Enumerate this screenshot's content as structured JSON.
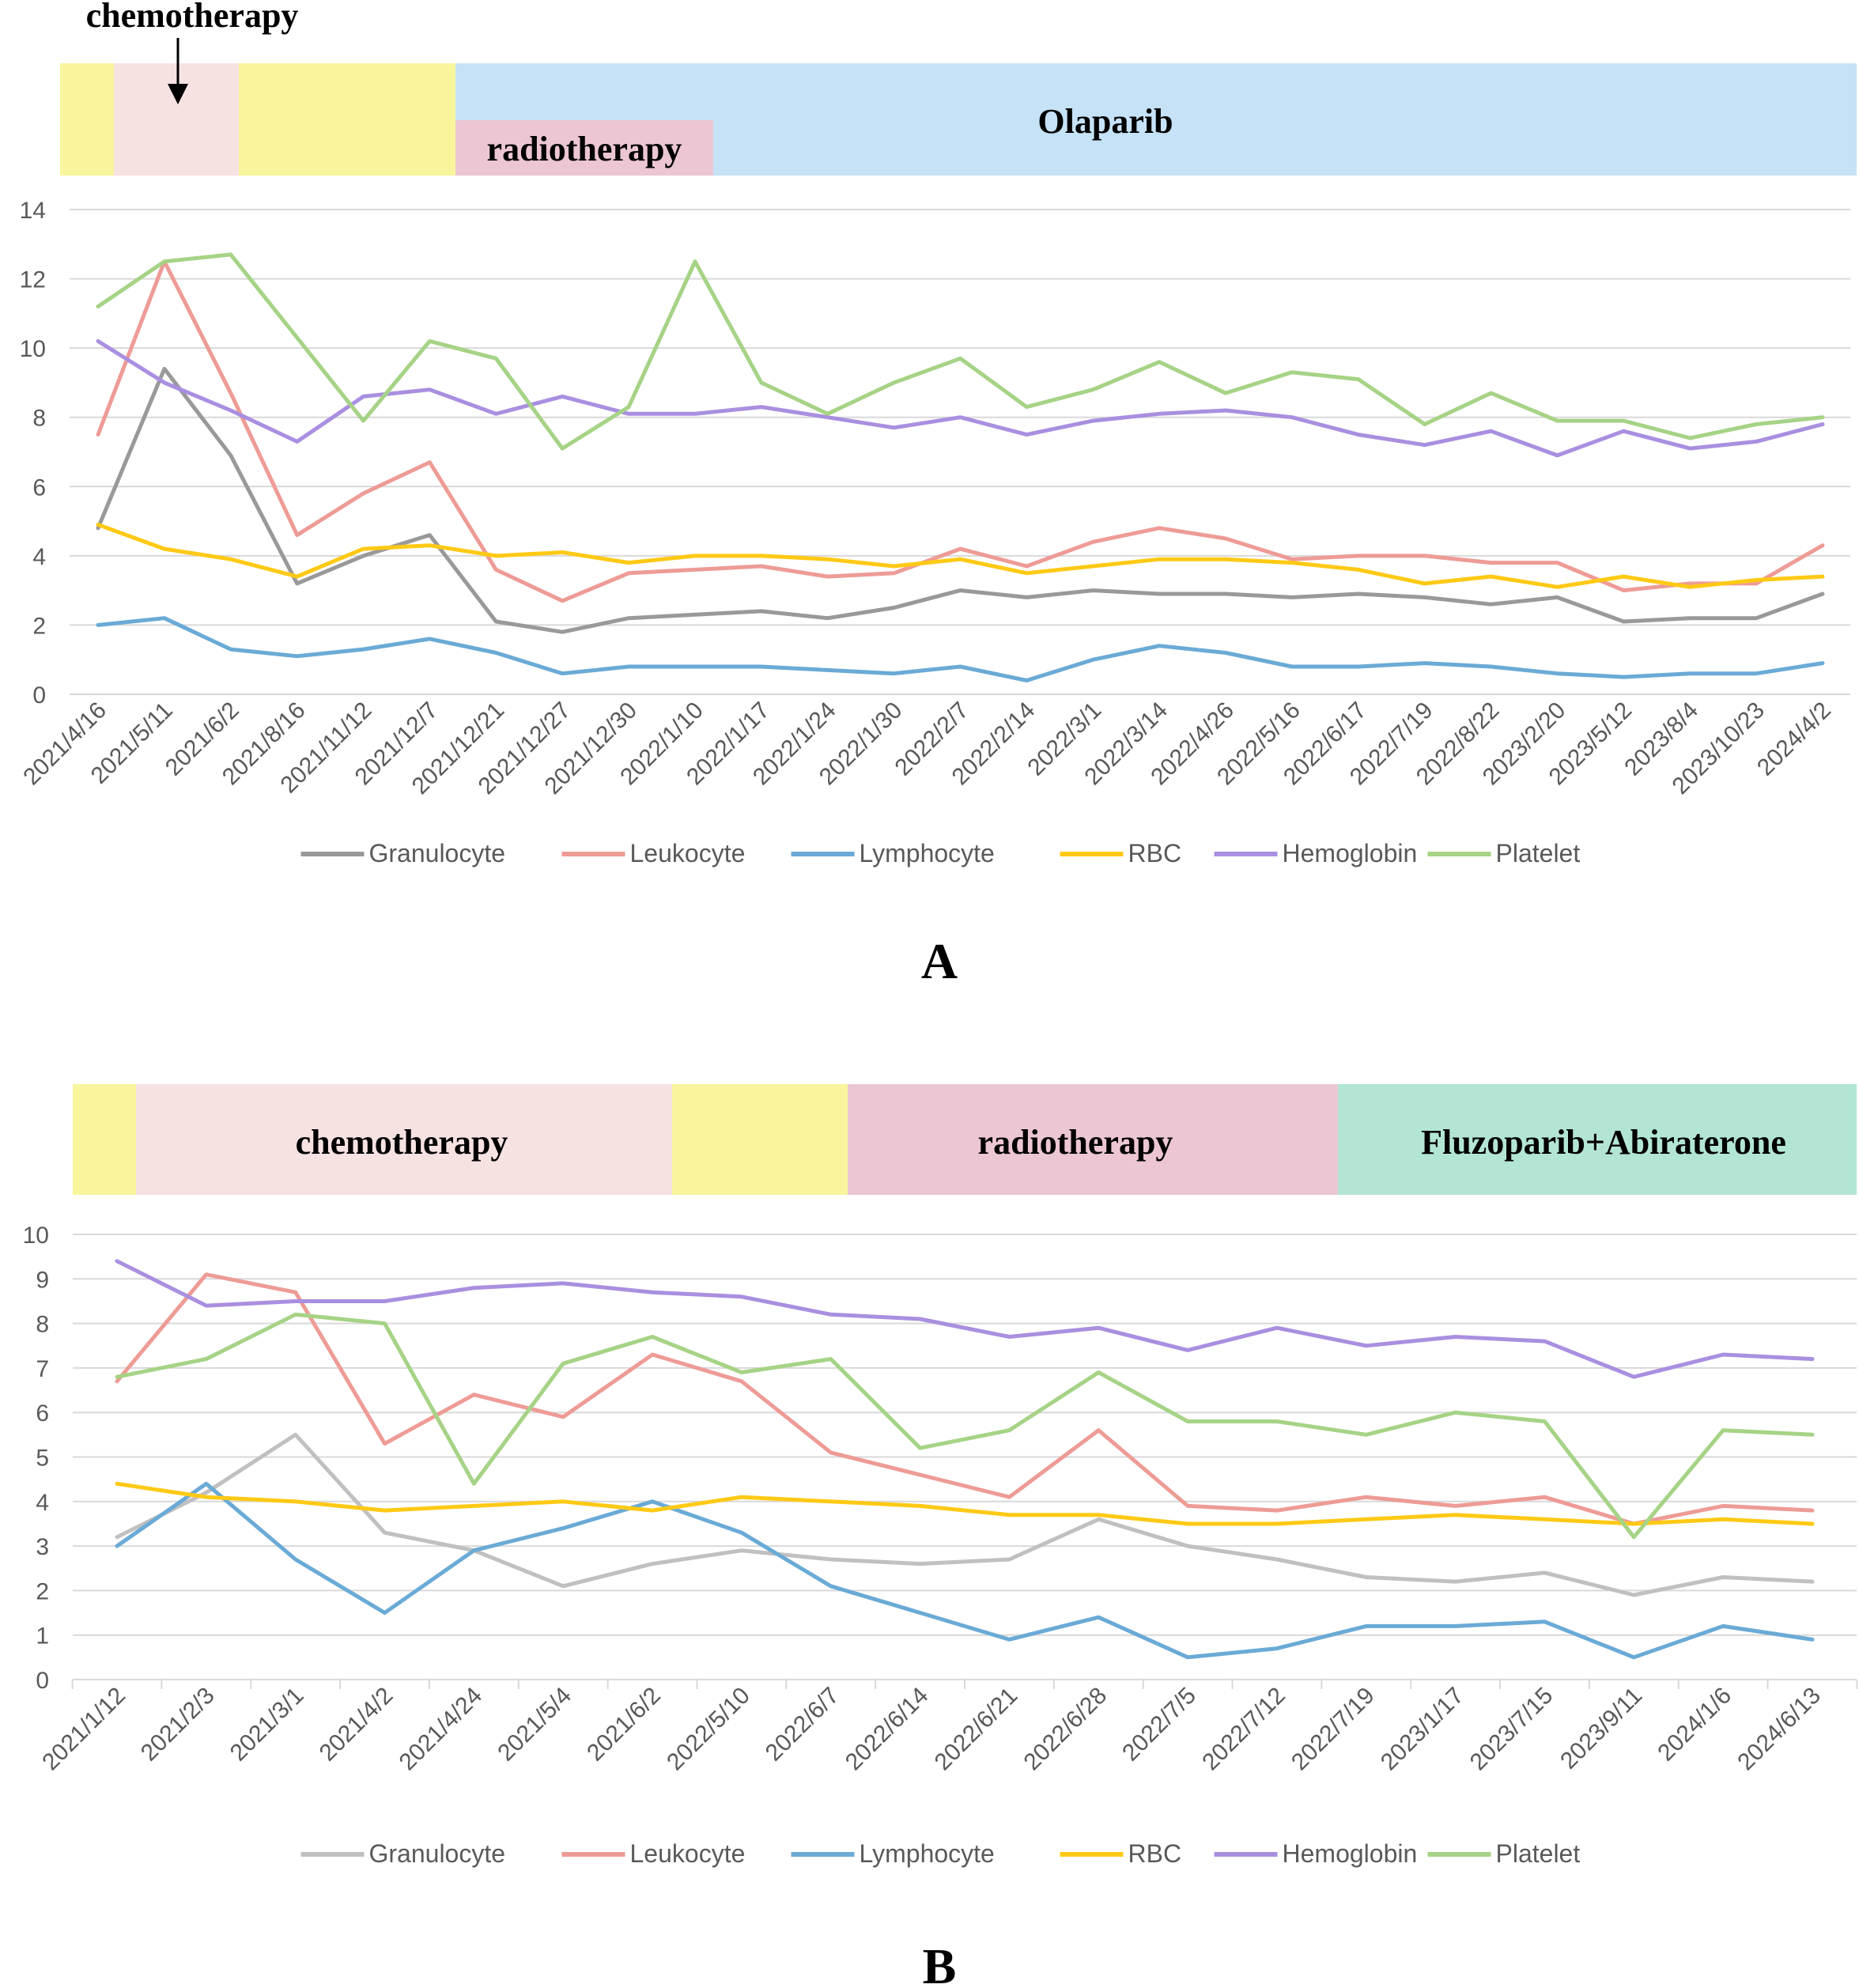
{
  "series_names": [
    "Granulocyte",
    "Leukocyte",
    "Lymphocyte",
    "RBC",
    "Hemoglobin",
    "Platelet"
  ],
  "chart_data": [
    {
      "type": "line",
      "panel_label": "A",
      "title": "",
      "xlabel": "",
      "ylabel": "",
      "ylim": [
        0,
        14
      ],
      "yticks": [
        0,
        2,
        4,
        6,
        8,
        10,
        12,
        14
      ],
      "grid": true,
      "legend": "bottom",
      "categories": [
        "2021/4/16",
        "2021/5/11",
        "2021/6/2",
        "2021/8/16",
        "2021/11/12",
        "2021/12/7",
        "2021/12/21",
        "2021/12/27",
        "2021/12/30",
        "2022/1/10",
        "2022/1/17",
        "2022/1/24",
        "2022/1/30",
        "2022/2/7",
        "2022/2/14",
        "2022/3/1",
        "2022/3/14",
        "2022/4/26",
        "2022/5/16",
        "2022/6/17",
        "2022/7/19",
        "2022/8/22",
        "2023/2/20",
        "2023/5/12",
        "2023/8/4",
        "2023/10/23",
        "2024/4/2"
      ],
      "series": [
        {
          "name": "Granulocyte",
          "color": "#999999",
          "values": [
            4.8,
            9.4,
            6.9,
            3.2,
            4.0,
            4.6,
            2.1,
            1.8,
            2.2,
            2.3,
            2.4,
            2.2,
            2.5,
            3.0,
            2.8,
            3.0,
            2.9,
            2.9,
            2.8,
            2.9,
            2.8,
            2.6,
            2.8,
            2.1,
            2.2,
            2.2,
            2.9
          ]
        },
        {
          "name": "Leukocyte",
          "color": "#ee9b96",
          "values": [
            7.5,
            12.5,
            8.7,
            4.6,
            5.8,
            6.7,
            3.6,
            2.7,
            3.5,
            3.6,
            3.7,
            3.4,
            3.5,
            4.2,
            3.7,
            4.4,
            4.8,
            4.5,
            3.9,
            4.0,
            4.0,
            3.8,
            3.8,
            3.0,
            3.2,
            3.2,
            4.3
          ]
        },
        {
          "name": "Lymphocyte",
          "color": "#6aaad6",
          "values": [
            2.0,
            2.2,
            1.3,
            1.1,
            1.3,
            1.6,
            1.2,
            0.6,
            0.8,
            0.8,
            0.8,
            0.7,
            0.6,
            0.8,
            0.4,
            1.0,
            1.4,
            1.2,
            0.8,
            0.8,
            0.9,
            0.8,
            0.6,
            0.5,
            0.6,
            0.6,
            0.9
          ]
        },
        {
          "name": "RBC",
          "color": "#ffc915",
          "values": [
            4.9,
            4.2,
            3.9,
            3.4,
            4.2,
            4.3,
            4.0,
            4.1,
            3.8,
            4.0,
            4.0,
            3.9,
            3.7,
            3.9,
            3.5,
            3.7,
            3.9,
            3.9,
            3.8,
            3.6,
            3.2,
            3.4,
            3.1,
            3.4,
            3.1,
            3.3,
            3.4
          ]
        },
        {
          "name": "Hemoglobin",
          "color": "#a98fe0",
          "values": [
            10.2,
            9.0,
            8.2,
            7.3,
            8.6,
            8.8,
            8.1,
            8.6,
            8.1,
            8.1,
            8.3,
            8.0,
            7.7,
            8.0,
            7.5,
            7.9,
            8.1,
            8.2,
            8.0,
            7.5,
            7.2,
            7.6,
            6.9,
            7.6,
            7.1,
            7.3,
            7.8
          ]
        },
        {
          "name": "Platelet",
          "color": "#a6d386",
          "values": [
            11.2,
            12.5,
            12.7,
            10.3,
            7.9,
            10.2,
            9.7,
            7.1,
            8.3,
            12.5,
            9.0,
            8.1,
            9.0,
            9.7,
            8.3,
            8.8,
            9.6,
            8.7,
            9.3,
            9.1,
            7.8,
            8.7,
            7.9,
            7.9,
            7.4,
            7.8,
            8.0
          ]
        }
      ]
    },
    {
      "type": "line",
      "panel_label": "B",
      "title": "",
      "xlabel": "",
      "ylabel": "",
      "ylim": [
        0,
        10
      ],
      "yticks": [
        0,
        1,
        2,
        3,
        4,
        5,
        6,
        7,
        8,
        9,
        10
      ],
      "grid": true,
      "legend": "bottom",
      "categories": [
        "2021/1/12",
        "2021/2/3",
        "2021/3/1",
        "2021/4/2",
        "2021/4/24",
        "2021/5/4",
        "2021/6/2",
        "2022/5/10",
        "2022/6/7",
        "2022/6/14",
        "2022/6/21",
        "2022/6/28",
        "2022/7/5",
        "2022/7/12",
        "2022/7/19",
        "2023/1/17",
        "2023/7/15",
        "2023/9/11",
        "2024/1/6",
        "2024/6/13"
      ],
      "series": [
        {
          "name": "Granulocyte",
          "color": "#c0c0c0",
          "values": [
            3.2,
            4.2,
            5.5,
            3.3,
            2.9,
            2.1,
            2.6,
            2.9,
            2.7,
            2.6,
            2.7,
            3.6,
            3.0,
            2.7,
            2.3,
            2.2,
            2.4,
            1.9,
            2.3,
            2.2
          ]
        },
        {
          "name": "Leukocyte",
          "color": "#ee9b96",
          "values": [
            6.7,
            9.1,
            8.7,
            5.3,
            6.4,
            5.9,
            7.3,
            6.7,
            5.1,
            4.6,
            4.1,
            5.6,
            3.9,
            3.8,
            4.1,
            3.9,
            4.1,
            3.5,
            3.9,
            3.8
          ]
        },
        {
          "name": "Lymphocyte",
          "color": "#6aaad6",
          "values": [
            3.0,
            4.4,
            2.7,
            1.5,
            2.9,
            3.4,
            4.0,
            3.3,
            2.1,
            1.5,
            0.9,
            1.4,
            0.5,
            0.7,
            1.2,
            1.2,
            1.3,
            0.5,
            1.2,
            0.9
          ]
        },
        {
          "name": "RBC",
          "color": "#ffc915",
          "values": [
            4.4,
            4.1,
            4.0,
            3.8,
            3.9,
            4.0,
            3.8,
            4.1,
            4.0,
            3.9,
            3.7,
            3.7,
            3.5,
            3.5,
            3.6,
            3.7,
            3.6,
            3.5,
            3.6,
            3.5
          ]
        },
        {
          "name": "Hemoglobin",
          "color": "#a98fe0",
          "values": [
            9.4,
            8.4,
            8.5,
            8.5,
            8.8,
            8.9,
            8.7,
            8.6,
            8.2,
            8.1,
            7.7,
            7.9,
            7.4,
            7.9,
            7.5,
            7.7,
            7.6,
            6.8,
            7.3,
            7.2
          ]
        },
        {
          "name": "Platelet",
          "color": "#a6d386",
          "values": [
            6.8,
            7.2,
            8.2,
            8.0,
            4.4,
            7.1,
            7.7,
            6.9,
            7.2,
            5.2,
            5.6,
            6.9,
            5.8,
            5.8,
            5.5,
            6.0,
            5.8,
            3.2,
            5.6,
            5.5
          ]
        }
      ]
    }
  ],
  "panels": [
    {
      "label": "A",
      "chemo_annotation": "chemotherapy",
      "bands": [
        {
          "text": "",
          "color": "#f8f59d"
        },
        {
          "text": "",
          "color": "#f7e2e2"
        },
        {
          "text": "",
          "color": "#f8f59d"
        },
        {
          "text": "Olaparib",
          "color": "#c6e2f6"
        },
        {
          "text": "radiotherapy",
          "color": "#ecc6d3"
        }
      ]
    },
    {
      "label": "B",
      "bands": [
        {
          "text": "",
          "color": "#f8f59d"
        },
        {
          "text": "chemotherapy",
          "color": "#f7e2e2"
        },
        {
          "text": "",
          "color": "#f8f59d"
        },
        {
          "text": "radiotherapy",
          "color": "#ecc6d3"
        },
        {
          "text": "Fluzoparib+Abiraterone",
          "color": "#b3e5d5"
        }
      ]
    }
  ]
}
